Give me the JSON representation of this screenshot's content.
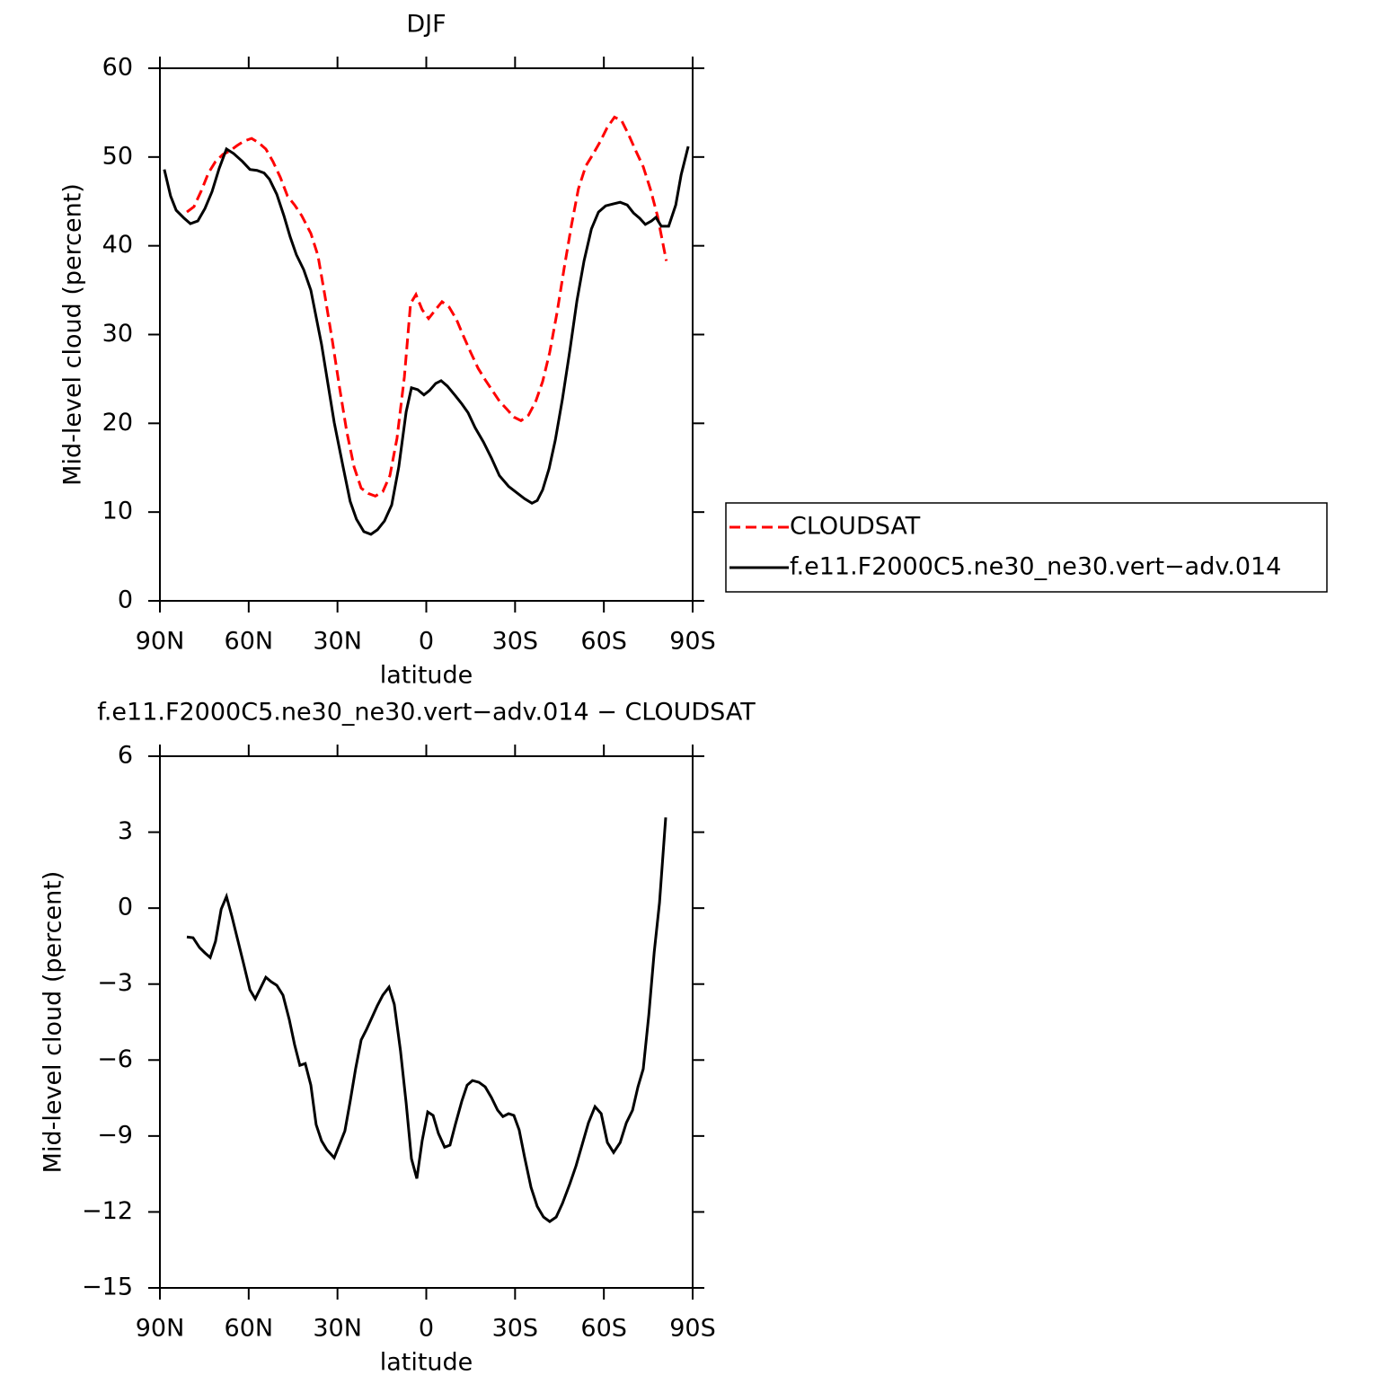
{
  "chart_data": [
    {
      "type": "line",
      "title": "DJF",
      "x_label": "latitude",
      "y_label": "Mid-level cloud (percent)",
      "xlim": [
        90,
        -90
      ],
      "xticks": [
        {
          "value": 90,
          "label": "90N"
        },
        {
          "value": 60,
          "label": "60N"
        },
        {
          "value": 30,
          "label": "30N"
        },
        0,
        {
          "value": -30,
          "label": "30S"
        },
        {
          "value": -60,
          "label": "60S"
        },
        {
          "value": -90,
          "label": "90S"
        }
      ],
      "ylim": [
        0,
        60
      ],
      "yticks": [
        0,
        10,
        20,
        30,
        40,
        50,
        60
      ],
      "legend": "right",
      "series": [
        {
          "name": "CLOUDSAT",
          "color": "#ff0000",
          "dash": true,
          "x": [
            80.9,
            78.5,
            76.0,
            73.6,
            71.2,
            68.7,
            66.3,
            63.9,
            61.5,
            59.0,
            56.6,
            54.2,
            51.8,
            49.3,
            46.9,
            44.5,
            42.1,
            39.0,
            36.6,
            34.2,
            31.7,
            29.3,
            26.9,
            24.4,
            22.0,
            19.6,
            17.2,
            14.7,
            12.3,
            9.9,
            7.4,
            5.3,
            3.5,
            1.4,
            -0.8,
            -2.9,
            -5.3,
            -7.7,
            -10.2,
            -12.6,
            -15.0,
            -17.5,
            -19.9,
            -22.3,
            -24.7,
            -27.2,
            -29.6,
            -32.0,
            -34.5,
            -36.9,
            -39.3,
            -41.7,
            -44.2,
            -46.6,
            -49.0,
            -51.4,
            -53.9,
            -56.3,
            -58.7,
            -61.1,
            -63.6,
            -66.0,
            -68.4,
            -70.8,
            -73.3,
            -75.7,
            -78.1,
            -81.1
          ],
          "values": [
            43.8,
            44.4,
            46.2,
            48.2,
            49.5,
            50.3,
            50.7,
            51.3,
            51.8,
            52.1,
            51.6,
            50.9,
            49.5,
            47.7,
            45.6,
            44.6,
            43.4,
            41.4,
            38.9,
            34.3,
            29.2,
            24.0,
            19.1,
            15.1,
            12.7,
            12.1,
            11.8,
            12.3,
            14.1,
            18.3,
            25.2,
            33.5,
            34.5,
            32.8,
            31.8,
            32.7,
            33.7,
            33.1,
            31.7,
            29.8,
            28.0,
            26.2,
            24.9,
            23.7,
            22.5,
            21.6,
            20.7,
            20.3,
            20.9,
            22.4,
            24.7,
            28.0,
            32.5,
            37.5,
            42.2,
            46.4,
            49.0,
            50.3,
            51.7,
            53.3,
            54.5,
            54.1,
            52.5,
            50.7,
            48.9,
            46.4,
            43.4,
            38.3
          ]
        },
        {
          "name": "f.e11.F2000C5.ne30_ne30.vert−adv.014",
          "color": "#000000",
          "dash": false,
          "x": [
            88.5,
            86.4,
            84.5,
            81.8,
            79.7,
            77.2,
            74.8,
            72.4,
            70.0,
            67.5,
            65.1,
            62.1,
            59.6,
            57.2,
            54.8,
            53.0,
            50.5,
            48.1,
            46.0,
            43.9,
            41.4,
            39.0,
            35.4,
            31.1,
            28.1,
            25.7,
            23.6,
            21.1,
            18.7,
            16.5,
            14.1,
            11.7,
            9.3,
            6.8,
            5.0,
            2.9,
            0.8,
            -1.1,
            -3.2,
            -5.0,
            -7.1,
            -9.6,
            -12.0,
            -14.1,
            -16.5,
            -19.3,
            -22.0,
            -24.7,
            -27.8,
            -30.5,
            -33.2,
            -35.7,
            -37.5,
            -39.3,
            -41.5,
            -43.6,
            -46.0,
            -48.5,
            -50.9,
            -53.3,
            -55.8,
            -58.2,
            -60.6,
            -63.0,
            -65.5,
            -67.9,
            -70.0,
            -72.1,
            -74.0,
            -76.1,
            -77.6,
            -79.4,
            -81.9,
            -84.3,
            -86.1,
            -88.5
          ],
          "values": [
            48.6,
            45.6,
            44.0,
            43.1,
            42.5,
            42.8,
            44.2,
            46.1,
            48.7,
            50.9,
            50.4,
            49.5,
            48.6,
            48.5,
            48.2,
            47.5,
            45.8,
            43.4,
            41.0,
            39.0,
            37.3,
            35.0,
            28.9,
            20.1,
            15.1,
            11.2,
            9.2,
            7.8,
            7.5,
            8.0,
            9.0,
            10.8,
            15.1,
            21.3,
            24.0,
            23.8,
            23.2,
            23.7,
            24.5,
            24.8,
            24.2,
            23.2,
            22.2,
            21.2,
            19.5,
            17.9,
            16.1,
            14.1,
            12.9,
            12.2,
            11.5,
            11.0,
            11.3,
            12.5,
            14.9,
            18.1,
            22.7,
            28.2,
            33.8,
            38.3,
            41.9,
            43.8,
            44.5,
            44.7,
            44.9,
            44.6,
            43.7,
            43.1,
            42.4,
            42.8,
            43.2,
            42.2,
            42.2,
            44.6,
            48.0,
            51.2
          ]
        }
      ]
    },
    {
      "type": "line",
      "title": "f.e11.F2000C5.ne30_ne30.vert−adv.014 − CLOUDSAT",
      "x_label": "latitude",
      "y_label": "Mid-level cloud (percent)",
      "xlim": [
        90,
        -90
      ],
      "xticks": [
        {
          "value": 90,
          "label": "90N"
        },
        {
          "value": 60,
          "label": "60N"
        },
        {
          "value": 30,
          "label": "30N"
        },
        0,
        {
          "value": -30,
          "label": "30S"
        },
        {
          "value": -60,
          "label": "60S"
        },
        {
          "value": -90,
          "label": "90S"
        }
      ],
      "ylim": [
        -15,
        6
      ],
      "yticks": [
        {
          "value": -15,
          "label": "−15"
        },
        {
          "value": -12,
          "label": "−12"
        },
        {
          "value": -9,
          "label": "−9"
        },
        {
          "value": -6,
          "label": "−6"
        },
        {
          "value": -3,
          "label": "−3"
        },
        0,
        3,
        6
      ],
      "series": [
        {
          "color": "#000000",
          "dash": false,
          "x": [
            80.9,
            78.8,
            76.6,
            74.8,
            73.0,
            71.2,
            69.3,
            67.5,
            65.7,
            63.9,
            61.8,
            59.6,
            57.8,
            56.0,
            54.2,
            52.4,
            50.5,
            48.4,
            46.3,
            44.5,
            42.7,
            40.9,
            39.0,
            37.2,
            35.4,
            33.6,
            31.1,
            29.3,
            27.5,
            25.7,
            23.9,
            22.0,
            20.2,
            18.4,
            16.6,
            14.7,
            12.6,
            10.8,
            8.7,
            6.8,
            5.0,
            3.2,
            1.4,
            -0.5,
            -2.3,
            -4.1,
            -6.2,
            -8.0,
            -9.8,
            -12.0,
            -13.8,
            -15.6,
            -17.8,
            -19.9,
            -22.0,
            -24.1,
            -25.9,
            -27.8,
            -29.6,
            -31.4,
            -33.2,
            -35.4,
            -37.5,
            -39.6,
            -41.7,
            -43.9,
            -46.0,
            -48.5,
            -50.6,
            -52.7,
            -54.8,
            -57.0,
            -59.1,
            -61.2,
            -63.3,
            -65.5,
            -67.6,
            -69.7,
            -71.5,
            -73.3,
            -75.2,
            -77.0,
            -78.8,
            -80.9
          ],
          "values": [
            -1.14,
            -1.17,
            -1.56,
            -1.77,
            -1.95,
            -1.31,
            -0.04,
            0.46,
            -0.32,
            -1.17,
            -2.16,
            -3.23,
            -3.58,
            -3.16,
            -2.73,
            -2.91,
            -3.05,
            -3.44,
            -4.4,
            -5.39,
            -6.21,
            -6.14,
            -6.99,
            -8.55,
            -9.19,
            -9.54,
            -9.86,
            -9.33,
            -8.8,
            -7.63,
            -6.35,
            -5.21,
            -4.79,
            -4.33,
            -3.87,
            -3.44,
            -3.12,
            -3.8,
            -5.64,
            -7.7,
            -9.9,
            -10.68,
            -9.19,
            -8.05,
            -8.19,
            -8.9,
            -9.44,
            -9.36,
            -8.55,
            -7.63,
            -6.99,
            -6.81,
            -6.88,
            -7.06,
            -7.48,
            -7.98,
            -8.23,
            -8.12,
            -8.19,
            -8.76,
            -9.83,
            -11.03,
            -11.78,
            -12.2,
            -12.38,
            -12.2,
            -11.67,
            -10.89,
            -10.18,
            -9.33,
            -8.48,
            -7.84,
            -8.12,
            -9.26,
            -9.65,
            -9.26,
            -8.48,
            -7.98,
            -7.06,
            -6.35,
            -4.22,
            -1.74,
            0.21,
            3.58
          ]
        }
      ]
    }
  ]
}
